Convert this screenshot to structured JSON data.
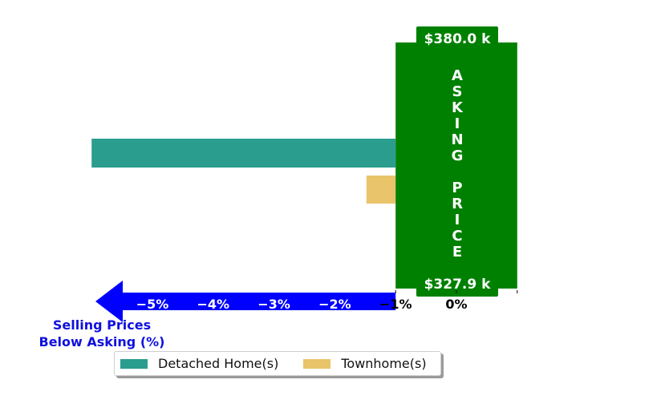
{
  "chart_data": {
    "type": "bar",
    "orientation": "horizontal",
    "series": [
      {
        "name": "Detached Home(s)",
        "values": [
          -5.0
        ],
        "color": "#2a9d8f"
      },
      {
        "name": "Townhome(s)",
        "values": [
          -0.48
        ],
        "color": "#e9c46a"
      }
    ],
    "xlim": [
      -6,
      1
    ],
    "xticks": [
      {
        "value": -5,
        "label": "−5%"
      },
      {
        "value": -4,
        "label": "−4%"
      },
      {
        "value": -3,
        "label": "−3%"
      },
      {
        "value": -2,
        "label": "−2%"
      },
      {
        "value": -1,
        "label": "−1%"
      },
      {
        "value": 0,
        "label": "0%"
      }
    ],
    "xlabel": "Selling Prices\nBelow Asking (%)",
    "xlabel_lines": [
      "Selling Prices",
      "Below Asking (%)"
    ],
    "asking_price_box": {
      "label": "ASKING PRICE",
      "letters": [
        "A",
        "S",
        "K",
        "I",
        "N",
        "G",
        "",
        "P",
        "R",
        "I",
        "C",
        "E"
      ],
      "top_value": "$380.0 k",
      "bottom_value": "$327.9 k",
      "color": "#008000"
    },
    "arrow_color": "#0000ff",
    "legend_position": "lower center",
    "grid": false
  }
}
